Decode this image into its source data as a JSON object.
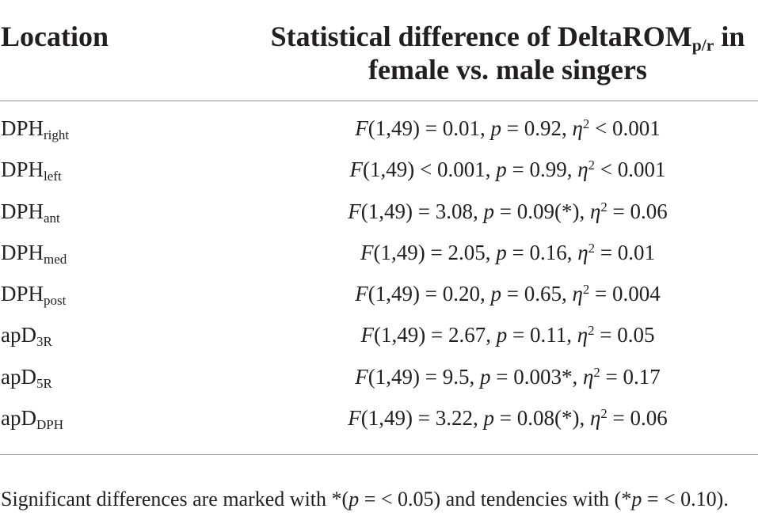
{
  "header": {
    "location": "Location",
    "stat_line1_main": "Statistical difference of DeltaROM",
    "stat_line1_sub": "p/r",
    "stat_line1_end": " in",
    "stat_line2": "female vs. male singers"
  },
  "symbols": {
    "f": "F",
    "p": "p",
    "eta": "η",
    "squared": "2"
  },
  "rows": [
    {
      "location": "DPH",
      "location_sub": "right",
      "f_stat": "(1,49) = 0.01,",
      "p_stat": "= 0.92,",
      "eta_stat": "< 0.001"
    },
    {
      "location": "DPH",
      "location_sub": "left",
      "f_stat": "(1,49) < 0.001,",
      "p_stat": "= 0.99,",
      "eta_stat": "< 0.001"
    },
    {
      "location": "DPH",
      "location_sub": "ant",
      "f_stat": "(1,49) = 3.08,",
      "p_stat": "= 0.09(*),",
      "eta_stat": "= 0.06"
    },
    {
      "location": "DPH",
      "location_sub": "med",
      "f_stat": "(1,49) = 2.05,",
      "p_stat": "= 0.16,",
      "eta_stat": "= 0.01"
    },
    {
      "location": "DPH",
      "location_sub": "post",
      "f_stat": "(1,49) = 0.20,",
      "p_stat": "= 0.65,",
      "eta_stat": "= 0.004"
    },
    {
      "location": "apD",
      "location_sub": "3R",
      "f_stat": "(1,49) = 2.67,",
      "p_stat": "= 0.11,",
      "eta_stat": "= 0.05"
    },
    {
      "location": "apD",
      "location_sub": "5R",
      "f_stat": "(1,49) = 9.5,",
      "p_stat": "= 0.003*,",
      "eta_stat": "= 0.17"
    },
    {
      "location": "apD",
      "location_sub": "DPH",
      "f_stat": "(1,49) = 3.22,",
      "p_stat": "= 0.08(*),",
      "eta_stat": "= 0.06"
    }
  ],
  "footnote": {
    "text_1": "Significant differences are marked with *(",
    "text_2": " = < 0.05) and tendencies with (*",
    "text_3": " = < 0.10)."
  }
}
